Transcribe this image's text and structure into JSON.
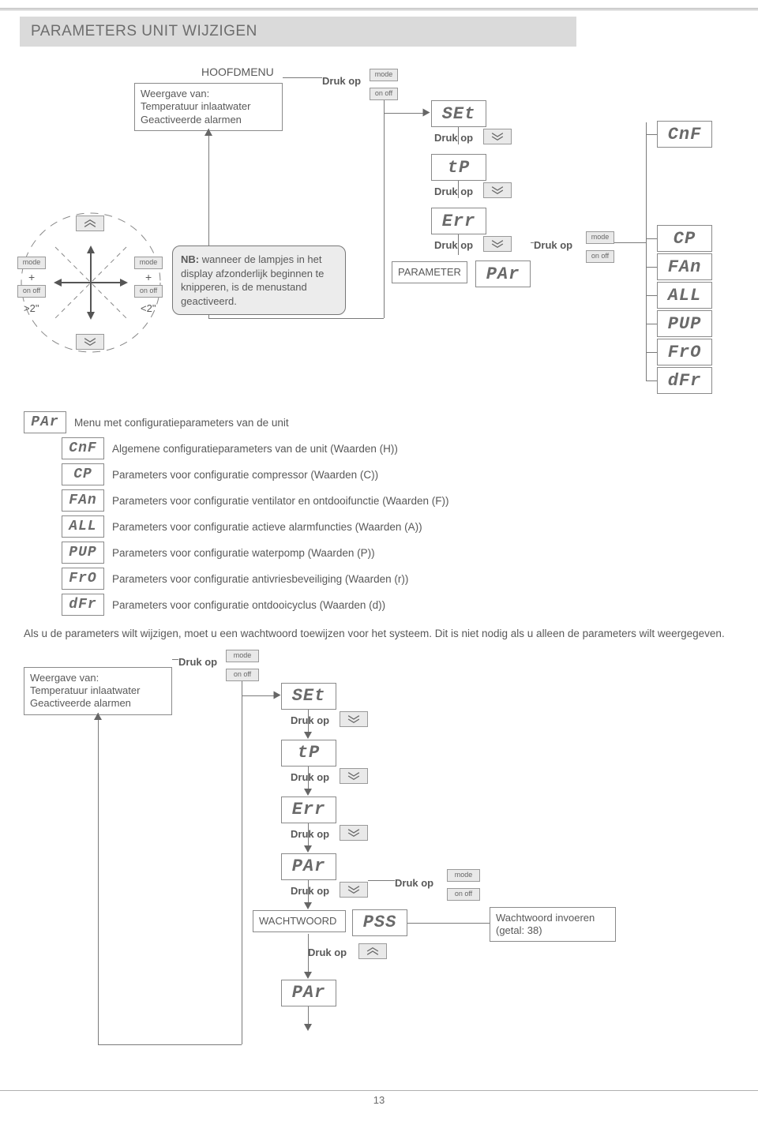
{
  "title": "PARAMETERS UNIT WIJZIGEN",
  "labels": {
    "hoofdmenu": "HOOFDMENU",
    "druk_op": "Druk op",
    "mode": "mode",
    "on_off": "on off",
    "on_off_sp": "on  off",
    "plus": "+",
    "gt2": ">2\"",
    "lt2": "<2\"",
    "parameter": "PARAMETER",
    "wachtwoord": "WACHTWOORD",
    "pw_box": "Wachtwoord invoeren\n(getal: 38)"
  },
  "weergave": {
    "l1": "Weergave van:",
    "l2": "Temperatuur inlaatwater",
    "l3": "Geactiveerde alarmen"
  },
  "nb_note": "NB: wanneer de lampjes in het display afzonderlijk beginnen te knipperen, is de menustand geactiveerd.",
  "seg": {
    "SEt": "SEt",
    "tP": "tP",
    "Err": "Err",
    "PAr": "PAr",
    "CnF": "CnF",
    "CP": "CP",
    "FAn": "FAn",
    "ALL": "ALL",
    "PUP": "PUP",
    "FrO": "FrO",
    "dFr": "dFr",
    "PSS": "PSS"
  },
  "list": {
    "title": "Menu met configuratieparameters van de unit",
    "items": [
      {
        "code": "CnF",
        "desc": "Algemene configuratieparameters van de unit (Waarden (H))"
      },
      {
        "code": "CP",
        "desc": "Parameters voor configuratie compressor (Waarden (C))"
      },
      {
        "code": "FAn",
        "desc": "Parameters voor configuratie ventilator en ontdooifunctie (Waarden (F))"
      },
      {
        "code": "ALL",
        "desc": "Parameters voor configuratie actieve alarmfuncties (Waarden (A))"
      },
      {
        "code": "PUP",
        "desc": "Parameters voor configuratie waterpomp (Waarden (P))"
      },
      {
        "code": "FrO",
        "desc": "Parameters voor configuratie antivriesbeveiliging (Waarden (r))"
      },
      {
        "code": "dFr",
        "desc": "Parameters voor configuratie ontdooicyclus (Waarden (d))"
      }
    ]
  },
  "paragraph": "Als u de parameters wilt wijzigen, moet u een wachtwoord toewijzen voor het systeem. Dit is niet nodig als u alleen de parameters wilt weergegeven.",
  "page": "13",
  "colors": {
    "text": "#595959",
    "panel": "#dadada",
    "btn_bg": "#e9e9e9",
    "border": "#8a8a8a",
    "note_bg": "#ececec"
  }
}
